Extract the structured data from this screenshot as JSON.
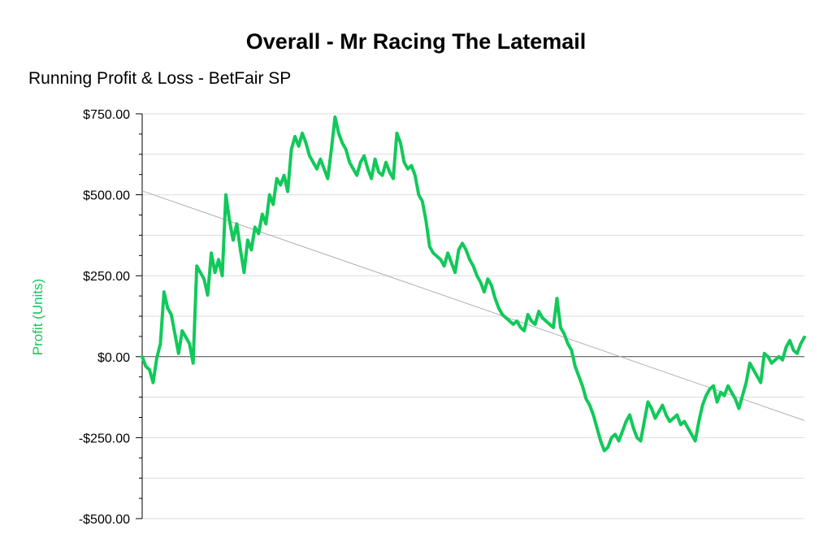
{
  "chart_data": {
    "type": "line",
    "title": "Overall - Mr Racing The Latemail",
    "subtitle": "Running Profit & Loss - BetFair SP",
    "xlabel": "",
    "ylabel": "Profit (Units)",
    "ylim": [
      -500,
      750
    ],
    "yticks": [
      750,
      500,
      250,
      0,
      -250,
      -500
    ],
    "ytick_labels": [
      "$750.00",
      "$500.00",
      "$250.00",
      "$0.00",
      "-$250.00",
      "-$500.00"
    ],
    "grid": true,
    "colors": {
      "series": "#11c95a",
      "trend": "#b0b0b0",
      "grid": "#dddddd",
      "axis": "#000000",
      "ylabel": "#11c95a"
    },
    "series": [
      {
        "values": [
          0,
          -30,
          -40,
          -80,
          -5,
          40,
          200,
          150,
          130,
          70,
          10,
          80,
          60,
          40,
          -20,
          280,
          260,
          240,
          190,
          320,
          260,
          300,
          250,
          500,
          420,
          360,
          410,
          330,
          260,
          360,
          330,
          400,
          380,
          440,
          410,
          500,
          470,
          550,
          530,
          560,
          510,
          640,
          680,
          650,
          690,
          660,
          620,
          600,
          580,
          610,
          580,
          550,
          640,
          740,
          690,
          660,
          640,
          600,
          580,
          560,
          600,
          620,
          580,
          550,
          610,
          570,
          560,
          600,
          570,
          550,
          690,
          660,
          600,
          580,
          590,
          560,
          500,
          480,
          420,
          340,
          320,
          310,
          300,
          280,
          320,
          290,
          260,
          330,
          350,
          330,
          300,
          280,
          250,
          230,
          200,
          240,
          220,
          180,
          150,
          130,
          120,
          110,
          100,
          110,
          90,
          80,
          130,
          110,
          100,
          140,
          120,
          110,
          100,
          90,
          180,
          90,
          70,
          40,
          20,
          -30,
          -60,
          -90,
          -130,
          -150,
          -180,
          -220,
          -260,
          -290,
          -280,
          -250,
          -240,
          -260,
          -230,
          -200,
          -180,
          -220,
          -250,
          -260,
          -200,
          -140,
          -160,
          -190,
          -170,
          -150,
          -180,
          -200,
          -190,
          -180,
          -210,
          -200,
          -220,
          -240,
          -260,
          -200,
          -150,
          -120,
          -100,
          -90,
          -140,
          -110,
          -120,
          -90,
          -110,
          -130,
          -160,
          -120,
          -80,
          -20,
          -40,
          -60,
          -80,
          10,
          0,
          -20,
          -10,
          0,
          -10,
          30,
          50,
          20,
          10,
          40,
          60
        ]
      }
    ],
    "trendline": {
      "start": 512,
      "end": -197
    }
  }
}
